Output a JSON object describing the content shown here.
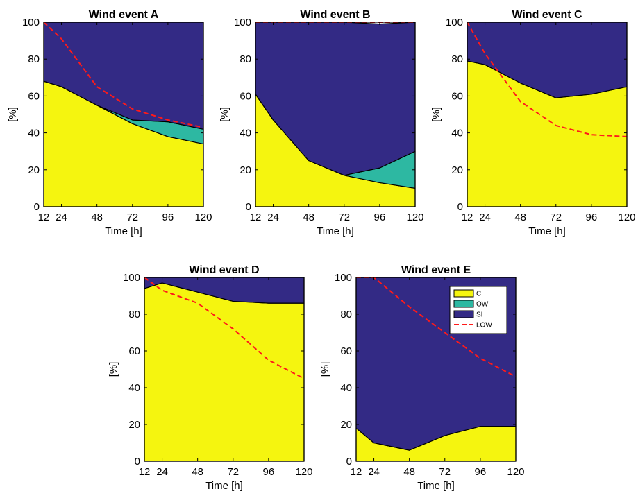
{
  "chart_data": [
    {
      "type": "area",
      "title": "Wind event A",
      "xlabel": "Time [h]",
      "ylabel": "[%]",
      "x": [
        12,
        24,
        48,
        72,
        96,
        120
      ],
      "xticks": [
        12,
        24,
        48,
        72,
        96,
        120
      ],
      "xlim": [
        12,
        120
      ],
      "ylim": [
        0,
        100
      ],
      "yticks": [
        0,
        20,
        40,
        60,
        80,
        100
      ],
      "stacked": true,
      "series": [
        {
          "name": "C",
          "values": [
            68,
            65,
            55,
            45,
            38,
            34
          ]
        },
        {
          "name": "OW",
          "values": [
            0,
            0,
            0,
            2,
            8,
            8
          ]
        },
        {
          "name": "SI",
          "values": [
            32,
            35,
            45,
            53,
            54,
            58
          ]
        }
      ],
      "line": {
        "name": "LOW",
        "values": [
          100,
          91,
          65,
          53,
          47,
          43
        ]
      }
    },
    {
      "type": "area",
      "title": "Wind event B",
      "xlabel": "Time [h]",
      "ylabel": "[%]",
      "x": [
        12,
        24,
        48,
        72,
        96,
        120
      ],
      "xticks": [
        12,
        24,
        48,
        72,
        96,
        120
      ],
      "xlim": [
        12,
        120
      ],
      "ylim": [
        0,
        100
      ],
      "yticks": [
        0,
        20,
        40,
        60,
        80,
        100
      ],
      "stacked": true,
      "series": [
        {
          "name": "C",
          "values": [
            61,
            47,
            25,
            17,
            13,
            10
          ]
        },
        {
          "name": "OW",
          "values": [
            0,
            0,
            0,
            0,
            8,
            20
          ]
        },
        {
          "name": "SI",
          "values": [
            39,
            53,
            75,
            83,
            78,
            70
          ]
        }
      ],
      "line": {
        "name": "LOW",
        "values": [
          100,
          100,
          100,
          100,
          100,
          100
        ]
      }
    },
    {
      "type": "area",
      "title": "Wind event C",
      "xlabel": "Time [h]",
      "ylabel": "[%]",
      "x": [
        12,
        24,
        48,
        72,
        96,
        120
      ],
      "xticks": [
        12,
        24,
        48,
        72,
        96,
        120
      ],
      "xlim": [
        12,
        120
      ],
      "ylim": [
        0,
        100
      ],
      "yticks": [
        0,
        20,
        40,
        60,
        80,
        100
      ],
      "stacked": true,
      "series": [
        {
          "name": "C",
          "values": [
            79,
            77,
            67,
            59,
            61,
            65
          ]
        },
        {
          "name": "OW",
          "values": [
            0,
            0,
            0,
            0,
            0,
            0
          ]
        },
        {
          "name": "SI",
          "values": [
            21,
            23,
            33,
            41,
            39,
            35
          ]
        }
      ],
      "line": {
        "name": "LOW",
        "values": [
          100,
          83,
          57,
          44,
          39,
          38
        ]
      }
    },
    {
      "type": "area",
      "title": "Wind event D",
      "xlabel": "Time [h]",
      "ylabel": "[%]",
      "x": [
        12,
        24,
        48,
        72,
        96,
        120
      ],
      "xticks": [
        12,
        24,
        48,
        72,
        96,
        120
      ],
      "xlim": [
        12,
        120
      ],
      "ylim": [
        0,
        100
      ],
      "yticks": [
        0,
        20,
        40,
        60,
        80,
        100
      ],
      "stacked": true,
      "series": [
        {
          "name": "C",
          "values": [
            94,
            97,
            92,
            87,
            86,
            86
          ]
        },
        {
          "name": "OW",
          "values": [
            0,
            0,
            0,
            0,
            0,
            0
          ]
        },
        {
          "name": "SI",
          "values": [
            6,
            3,
            8,
            13,
            14,
            14
          ]
        }
      ],
      "line": {
        "name": "LOW",
        "values": [
          100,
          93,
          86,
          72,
          55,
          45
        ]
      }
    },
    {
      "type": "area",
      "title": "Wind event E",
      "xlabel": "Time [h]",
      "ylabel": "[%]",
      "x": [
        12,
        24,
        48,
        72,
        96,
        120
      ],
      "xticks": [
        12,
        24,
        48,
        72,
        96,
        120
      ],
      "xlim": [
        12,
        120
      ],
      "ylim": [
        0,
        100
      ],
      "yticks": [
        0,
        20,
        40,
        60,
        80,
        100
      ],
      "stacked": true,
      "series": [
        {
          "name": "C",
          "values": [
            18,
            10,
            6,
            14,
            19,
            19
          ]
        },
        {
          "name": "OW",
          "values": [
            0,
            0,
            0,
            0,
            0,
            0
          ]
        },
        {
          "name": "SI",
          "values": [
            82,
            90,
            94,
            86,
            81,
            81
          ]
        }
      ],
      "line": {
        "name": "LOW",
        "values": [
          100,
          100,
          84,
          70,
          56,
          46
        ]
      },
      "legend": {
        "placement": "top-right",
        "entries": [
          "C",
          "OW",
          "SI",
          "LOW"
        ]
      }
    }
  ],
  "colors": {
    "C": "#f5f50f",
    "OW": "#2db8a2",
    "SI": "#332a85",
    "LOW": "#ff1a1a"
  }
}
